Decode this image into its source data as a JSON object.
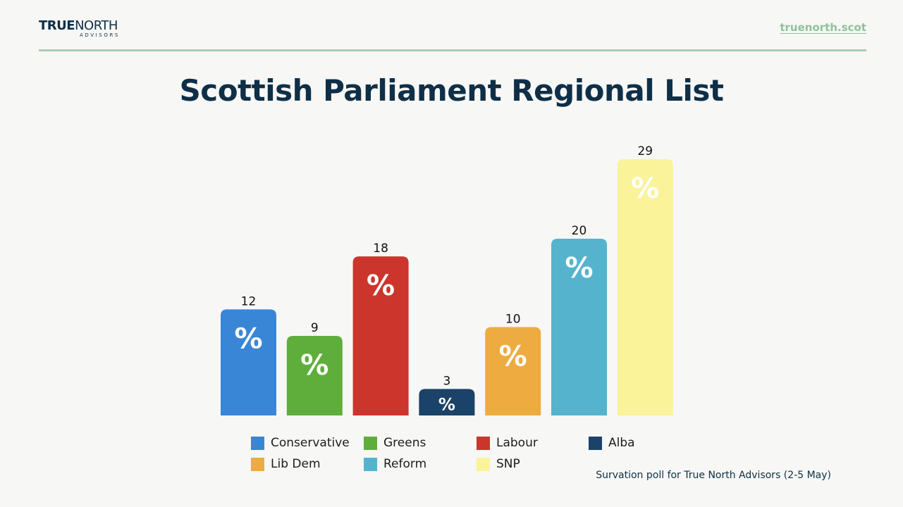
{
  "header": {
    "logo_main_bold": "TRUE",
    "logo_main_rest": "NORTH",
    "logo_sub": "ADVISORS",
    "site_link": "truenorth.scot"
  },
  "colors": {
    "title": "#0e2f47",
    "link": "#8fc29a",
    "rule": "#a9ceb0",
    "background": "#f7f7f5"
  },
  "chart_data": {
    "type": "bar",
    "title": "Scottish Parliament Regional List",
    "categories": [
      "Conservative",
      "Greens",
      "Labour",
      "Alba",
      "Lib Dem",
      "Reform",
      "SNP"
    ],
    "values": [
      12,
      9,
      18,
      3,
      10,
      20,
      29
    ],
    "unit_symbol": "%",
    "colors": [
      "#3a86d6",
      "#5fae3c",
      "#cc352b",
      "#1b4268",
      "#edab40",
      "#55b3cd",
      "#faf39a"
    ],
    "xlabel": "",
    "ylabel": "",
    "grid": false,
    "legend": {
      "placement": "bottom",
      "rows": [
        [
          "Conservative",
          "Greens",
          "Labour",
          "Alba"
        ],
        [
          "Lib Dem",
          "Reform",
          "SNP"
        ]
      ]
    },
    "source": "Survation poll for True North Advisors (2-5 May)"
  }
}
